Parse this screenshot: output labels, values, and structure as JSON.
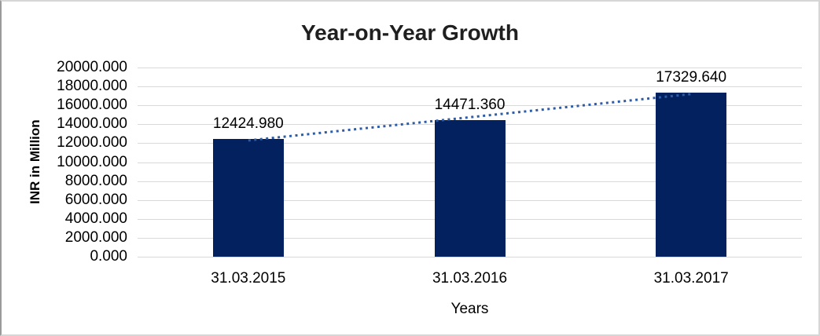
{
  "chart_data": {
    "type": "bar",
    "title": "Year-on-Year Growth",
    "xlabel": "Years",
    "ylabel": "INR in Million",
    "categories": [
      "31.03.2015",
      "31.03.2016",
      "31.03.2017"
    ],
    "values": [
      12424.98,
      14471.36,
      17329.64
    ],
    "data_labels": [
      "12424.980",
      "14471.360",
      "17329.640"
    ],
    "y_ticks": [
      "0.000",
      "2000.000",
      "4000.000",
      "6000.000",
      "8000.000",
      "10000.000",
      "12000.000",
      "14000.000",
      "16000.000",
      "18000.000",
      "20000.000"
    ],
    "ylim": [
      0,
      20000
    ],
    "grid": true,
    "legend": "none",
    "trendline": {
      "type": "linear",
      "style": "dotted"
    },
    "colors": {
      "bar": "#03215F",
      "trendline": "#2E5CA6",
      "gridline": "#D9D9D9",
      "title_text": "#1F1F1F",
      "label_text": "#000000",
      "frame_border": "#D6D6D6",
      "frame_border_left": "#9A9A9A",
      "background": "#FFFFFF"
    }
  }
}
